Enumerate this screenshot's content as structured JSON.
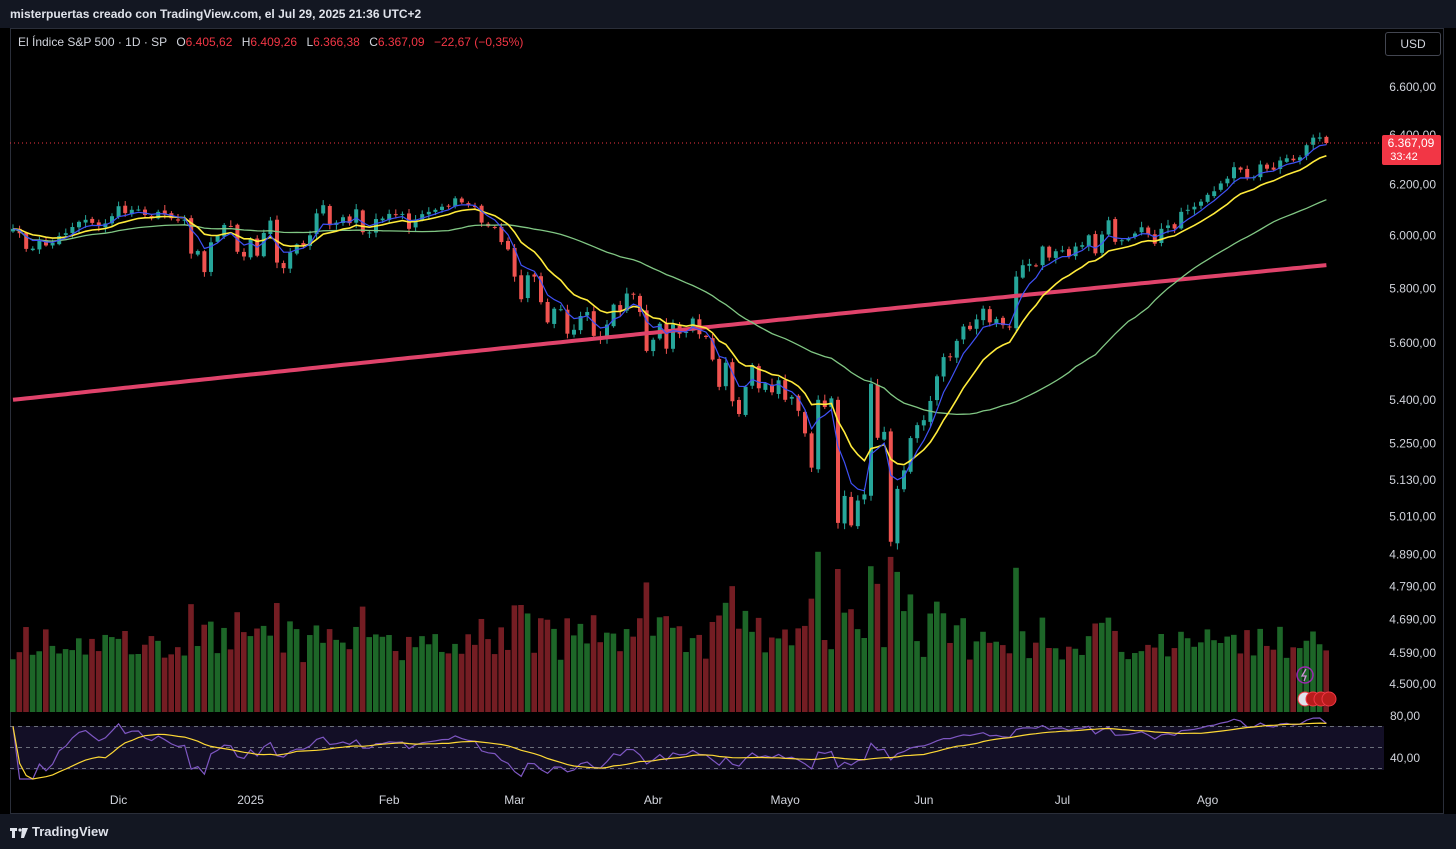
{
  "header": {
    "text": "misterpuertas creado con TradingView.com, el Jul 29, 2025 21:36 UTC+2"
  },
  "legend": {
    "symbol": "El Índice S&P 500 · 1D · SP",
    "open_label": "O",
    "open": "6.405,62",
    "high_label": "H",
    "high": "6.409,26",
    "low_label": "L",
    "low": "6.366,38",
    "close_label": "C",
    "close": "6.367,09",
    "change": "−22,67 (−0,35%)"
  },
  "currency_button": "USD",
  "price_badge": {
    "price": "6.367,09",
    "countdown": "33:42"
  },
  "footer": {
    "brand": "TradingView"
  },
  "colors": {
    "up": "#26a69a",
    "down": "#ef5350",
    "ema_short": "#3f51f5",
    "ema_mid": "#ffeb3b",
    "ma_long": "#81c784",
    "ma_200": "#e0436b",
    "rsi": "#7e57c2",
    "rsi_ma": "#fdd835"
  },
  "chart_data": {
    "type": "candlestick",
    "title": "El Índice S&P 500 · 1D · SP",
    "price_axis_ticks": [
      "6.600,00",
      "6.400,00",
      "6.200,00",
      "6.000,00",
      "5.800,00",
      "5.600,00",
      "5.400,00",
      "5.250,00",
      "5.130,00",
      "5.010,00",
      "4.890,00",
      "4.790,00",
      "4.690,00",
      "4.590,00",
      "4.500,00"
    ],
    "price_axis_values": [
      6600,
      6400,
      6200,
      6000,
      5800,
      5600,
      5400,
      5250,
      5130,
      5010,
      4890,
      4790,
      4690,
      4590,
      4500
    ],
    "log_scale": true,
    "time_axis_labels": [
      "Dic",
      "2025",
      "Feb",
      "Mar",
      "Abr",
      "Mayo",
      "Jun",
      "Jul",
      "Ago"
    ],
    "time_axis_index": [
      16,
      36,
      57,
      76,
      97,
      117,
      138,
      159,
      181
    ],
    "rsi_axis_ticks": [
      "80,00",
      "40,00"
    ],
    "rsi_axis_values": [
      80,
      40
    ],
    "rsi_bands": [
      70,
      50,
      30
    ],
    "close": [
      6026,
      6009,
      5949,
      5950,
      5983,
      5962,
      5972,
      5998,
      6009,
      6033,
      6053,
      6061,
      6049,
      6037,
      6047,
      6075,
      6114,
      6087,
      6100,
      6101,
      6080,
      6072,
      6092,
      6081,
      6067,
      6058,
      6062,
      5931,
      5941,
      5861,
      5974,
      5999,
      6041,
      6036,
      5938,
      5920,
      5988,
      5923,
      6010,
      6058,
      5897,
      5876,
      5936,
      5966,
      5963,
      6001,
      6086,
      6118,
      6040,
      6050,
      6071,
      6048,
      6102,
      6013,
      6012,
      6064,
      6066,
      6084,
      6080,
      6084,
      6026,
      6062,
      6083,
      6092,
      6100,
      6112,
      6114,
      6145,
      6129,
      6118,
      6113,
      6050,
      6036,
      6030,
      5975,
      5947,
      5844,
      5760,
      5849,
      5844,
      5749,
      5675,
      5725,
      5723,
      5634,
      5648,
      5698,
      5713,
      5626,
      5614,
      5667,
      5740,
      5717,
      5781,
      5777,
      5713,
      5572,
      5612,
      5670,
      5580,
      5667,
      5634,
      5640,
      5689,
      5632,
      5622,
      5541,
      5445,
      5530,
      5395,
      5351,
      5445,
      5522,
      5440,
      5458,
      5426,
      5468,
      5400,
      5410,
      5362,
      5285,
      5170,
      5400,
      5375,
      5405,
      4990,
      5077,
      4982,
      5062,
      5082,
      5456,
      5270,
      5290,
      4930,
      5100,
      5161,
      5269,
      5313,
      5330,
      5396,
      5482,
      5550,
      5550,
      5608,
      5660,
      5650,
      5686,
      5725,
      5675,
      5687,
      5665,
      5659,
      5844,
      5887,
      5892,
      5886,
      5958,
      5916,
      5940,
      5943,
      5921,
      5958,
      5963,
      6001,
      5932,
      6004,
      6059,
      5976,
      5982,
      5989,
      6008,
      6032,
      6005,
      5969,
      6026,
      6039,
      6027,
      6092,
      6100,
      6112,
      6132,
      6159,
      6173,
      6204,
      6223,
      6269,
      6259,
      6225,
      6229,
      6280,
      6263,
      6259,
      6296,
      6305,
      6297,
      6309,
      6358,
      6389,
      6390,
      6367
    ]
  }
}
